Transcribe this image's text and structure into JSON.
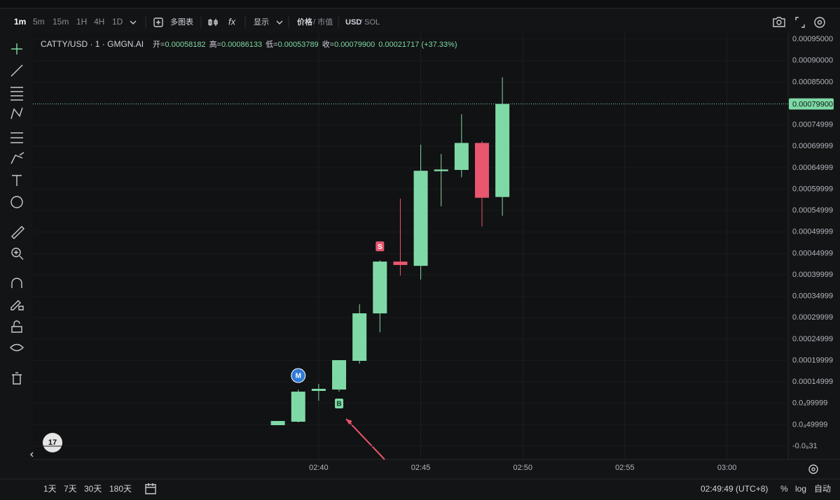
{
  "toolbar": {
    "intervals": [
      "1m",
      "5m",
      "15m",
      "1H",
      "4H",
      "1D"
    ],
    "multi_chart": "多图表",
    "display": "显示",
    "price": "价格",
    "market_cap": "/ 市值",
    "usd": "USD",
    "sol": "/ SOL"
  },
  "bottom_bar": {
    "ranges": [
      "1天",
      "7天",
      "30天",
      "180天"
    ],
    "clock": "02:49:49 (UTC+8)",
    "percent": "%",
    "log": "log",
    "auto": "自动"
  },
  "chart_data": {
    "type": "candlestick",
    "symbol": "CATTY/USD · 1 · GMGN.AI",
    "legend": [
      {
        "label": "开=",
        "value": "0.00058182"
      },
      {
        "label": "高=",
        "value": "0.00086133"
      },
      {
        "label": "低=",
        "value": "0.00053789"
      },
      {
        "label": "收=",
        "value": "0.00079900"
      }
    ],
    "change": "0.00021717 (+37.33%)",
    "x": [
      "02:38",
      "02:39",
      "02:40",
      "02:41",
      "02:42",
      "02:43",
      "02:44",
      "02:45",
      "02:46",
      "02:47",
      "02:48",
      "02:49"
    ],
    "open": [
      4.9e-05,
      5.71e-05,
      0.000129,
      0.0001322,
      0.0001992,
      0.00031,
      0.000431,
      0.000421,
      0.000642,
      0.000645,
      0.000708,
      0.00058182
    ],
    "high": [
      5.88e-05,
      0.0001322,
      0.0001453,
      0.0002008,
      0.0003314,
      0.000434,
      0.000578,
      0.000704,
      0.000682,
      0.000775,
      0.000712,
      0.00086133
    ],
    "low": [
      4.9e-05,
      5.55e-05,
      0.0001061,
      0.0001273,
      0.0001926,
      0.000266,
      0.000398,
      0.000389,
      0.00056,
      0.000628,
      0.000513,
      0.00053789
    ],
    "close": [
      5.88e-05,
      0.0001273,
      0.0001339,
      0.0002008,
      0.0003102,
      0.000431,
      0.000423,
      0.000643,
      0.000646,
      0.000708,
      0.00058,
      0.000799
    ],
    "up_color": "#7fd9a6",
    "down_color": "#e8566f",
    "markers": [
      {
        "x": "02:39",
        "text": "M",
        "color": "#2f7ad8",
        "position": "above",
        "shape": "circle"
      },
      {
        "x": "02:41",
        "text": "B",
        "color": "#7fd9a6",
        "position": "below",
        "shape": "square"
      },
      {
        "x": "02:43",
        "text": "S",
        "color": "#e8566f",
        "position": "above",
        "shape": "square"
      }
    ],
    "last_price": {
      "value": 0.000799,
      "label": "0.00079900"
    },
    "xlim": [
      "02:26",
      "03:03"
    ],
    "xticks": [
      "02:40",
      "02:45",
      "02:50",
      "02:55",
      "03:00"
    ],
    "ylim": [
      -3.1e-05,
      0.000965
    ],
    "yticks": [
      {
        "value": 0.00095,
        "label": "0.00095000"
      },
      {
        "value": 0.0009,
        "label": "0.00090000"
      },
      {
        "value": 0.00085,
        "label": "0.00085000"
      },
      0.00074999,
      0.00069999,
      0.00064999,
      0.00059999,
      0.00054999,
      0.00049999,
      0.00044999,
      0.00039999,
      0.00034999,
      0.00029999,
      0.00024999,
      0.00019999,
      0.00014999,
      {
        "value": 9.9999e-05,
        "label": "0.0₄99999"
      },
      {
        "value": 4.9999e-05,
        "label": "0.0₄49999"
      },
      {
        "value": -3.1e-09,
        "label": "-0.0₈31"
      }
    ],
    "grid": true
  }
}
